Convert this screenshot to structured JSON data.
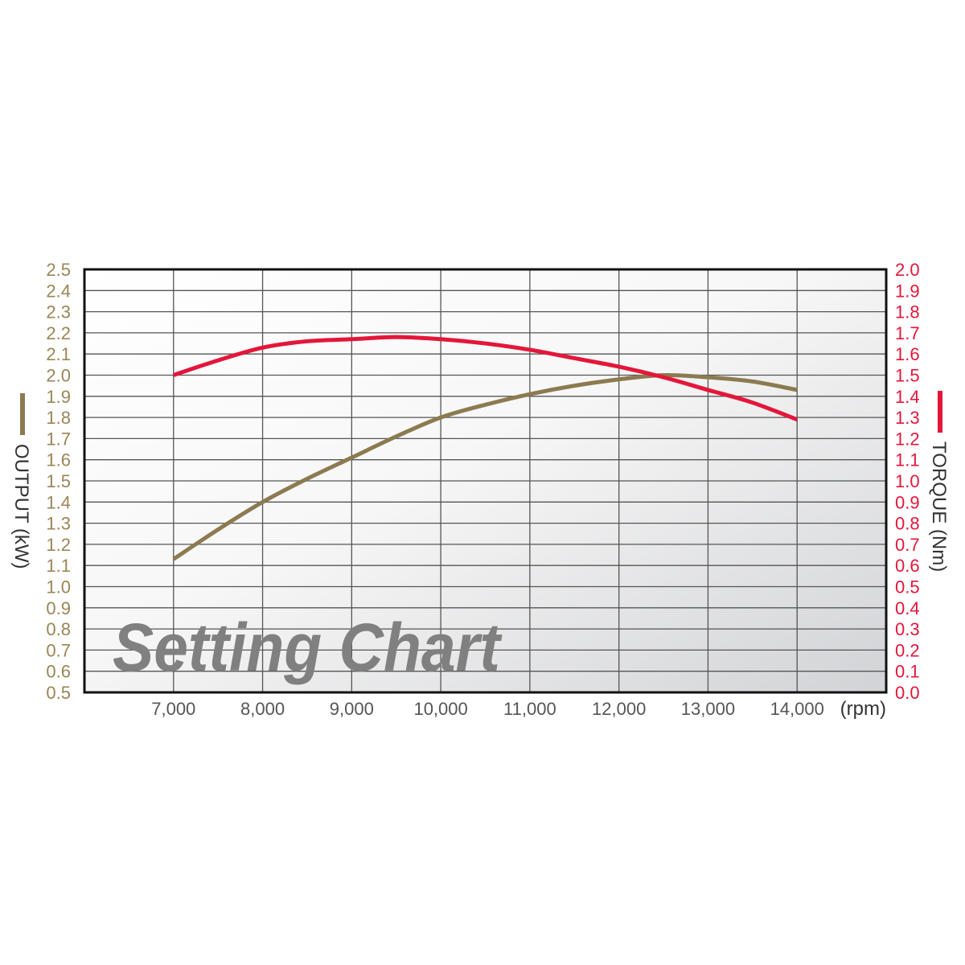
{
  "chart_data": {
    "type": "line",
    "title": "Setting Chart",
    "xlabel": "(rpm)",
    "x_ticks": [
      "7,000",
      "8,000",
      "9,000",
      "10,000",
      "11,000",
      "12,000",
      "13,000",
      "14,000"
    ],
    "x_tick_values": [
      7000,
      8000,
      9000,
      10000,
      11000,
      12000,
      13000,
      14000
    ],
    "xlim": [
      6000,
      15000
    ],
    "y_left": {
      "label": "OUTPUT (kW)",
      "ylim": [
        0.5,
        2.5
      ],
      "ticks": [
        "0.5",
        "0.6",
        "0.7",
        "0.8",
        "0.9",
        "1.0",
        "1.1",
        "1.2",
        "1.3",
        "1.4",
        "1.5",
        "1.6",
        "1.7",
        "1.8",
        "1.9",
        "2.0",
        "2.1",
        "2.2",
        "2.3",
        "2.4",
        "2.5"
      ]
    },
    "y_right": {
      "label": "TORQUE (Nm)",
      "ylim": [
        0.0,
        2.0
      ],
      "ticks": [
        "0.0",
        "0.1",
        "0.2",
        "0.3",
        "0.4",
        "0.5",
        "0.6",
        "0.7",
        "0.8",
        "0.9",
        "1.0",
        "1.1",
        "1.2",
        "1.3",
        "1.4",
        "1.5",
        "1.6",
        "1.7",
        "1.8",
        "1.9",
        "2.0"
      ]
    },
    "grid": true,
    "legend_placement": "beside axis labels",
    "series": [
      {
        "axis": "left",
        "color": "#8c7a50",
        "x": [
          7000,
          7500,
          8000,
          8500,
          9000,
          9500,
          10000,
          10500,
          11000,
          11500,
          12000,
          12500,
          13000,
          13500,
          14000
        ],
        "values": [
          1.13,
          1.27,
          1.4,
          1.51,
          1.61,
          1.71,
          1.8,
          1.86,
          1.91,
          1.95,
          1.98,
          2.0,
          1.99,
          1.97,
          1.93
        ]
      },
      {
        "axis": "right",
        "color": "#e4163a",
        "x": [
          7000,
          7500,
          8000,
          8500,
          9000,
          9500,
          10000,
          10500,
          11000,
          11500,
          12000,
          12500,
          13000,
          13500,
          14000
        ],
        "values": [
          1.5,
          1.57,
          1.63,
          1.66,
          1.67,
          1.68,
          1.67,
          1.65,
          1.62,
          1.58,
          1.54,
          1.49,
          1.43,
          1.37,
          1.29
        ]
      }
    ]
  },
  "colors": {
    "left_axis": "#9a8556",
    "right_axis": "#e4163a",
    "x_axis": "#555555",
    "title": "#808080"
  }
}
